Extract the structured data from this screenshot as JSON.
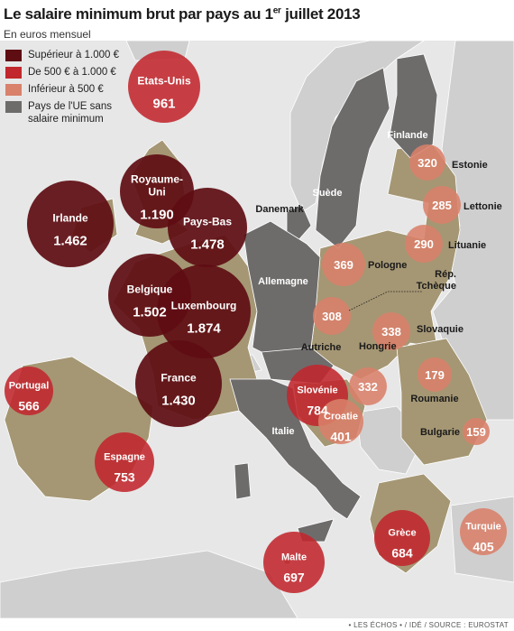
{
  "title": "Le salaire minimum brut par pays au 1",
  "title_sup": "er",
  "title_suffix": " juillet 2013",
  "subtitle": "En euros mensuel",
  "source": "• LES ÉCHOS • / IDÉ / SOURCE : EUROSTAT",
  "colors": {
    "sea": "#e7e7e7",
    "land_other": "#cfcfcf",
    "eu_with_min_wage": "#a59774",
    "eu_without_min_wage": "#6e6c6b",
    "tier_high": "#5e0d12",
    "tier_mid": "#c1272d",
    "tier_low": "#d9816a"
  },
  "legend": [
    {
      "label": "Supérieur à  1.000 €",
      "color": "#5e0d12"
    },
    {
      "label": "De 500 € à 1.000 €",
      "color": "#c1272d"
    },
    {
      "label": "Inférieur à 500 €",
      "color": "#d9816a"
    },
    {
      "label": "Pays de l'UE sans salaire minimum",
      "color": "#6e6c6b"
    }
  ],
  "countries": [
    {
      "name": "Etats-Unis",
      "value": "961",
      "tier": "mid"
    },
    {
      "name": "Royaume-Uni",
      "value": "1.190",
      "tier": "high"
    },
    {
      "name": "Irlande",
      "value": "1.462",
      "tier": "high"
    },
    {
      "name": "Pays-Bas",
      "value": "1.478",
      "tier": "high"
    },
    {
      "name": "Belgique",
      "value": "1.502",
      "tier": "high"
    },
    {
      "name": "Luxembourg",
      "value": "1.874",
      "tier": "high"
    },
    {
      "name": "France",
      "value": "1.430",
      "tier": "high"
    },
    {
      "name": "Portugal",
      "value": "566",
      "tier": "mid"
    },
    {
      "name": "Espagne",
      "value": "753",
      "tier": "mid"
    },
    {
      "name": "Malte",
      "value": "697",
      "tier": "mid"
    },
    {
      "name": "Grèce",
      "value": "684",
      "tier": "mid"
    },
    {
      "name": "Slovénie",
      "value": "784",
      "tier": "mid"
    },
    {
      "name": "Croatie",
      "value": "401",
      "tier": "low"
    },
    {
      "name": "Hongrie",
      "value": "332",
      "tier": "low"
    },
    {
      "name": "Slovaquie",
      "value": "338",
      "tier": "low"
    },
    {
      "name": "Rép. Tchèque",
      "value": "308",
      "tier": "low"
    },
    {
      "name": "Pologne",
      "value": "369",
      "tier": "low"
    },
    {
      "name": "Estonie",
      "value": "320",
      "tier": "low"
    },
    {
      "name": "Lettonie",
      "value": "285",
      "tier": "low"
    },
    {
      "name": "Lituanie",
      "value": "290",
      "tier": "low"
    },
    {
      "name": "Roumanie",
      "value": "179",
      "tier": "low"
    },
    {
      "name": "Bulgarie",
      "value": "159",
      "tier": "low"
    },
    {
      "name": "Turquie",
      "value": "405",
      "tier": "low"
    }
  ],
  "no_min_wage_countries": [
    "Danemark",
    "Suède",
    "Finlande",
    "Allemagne",
    "Autriche",
    "Italie"
  ]
}
